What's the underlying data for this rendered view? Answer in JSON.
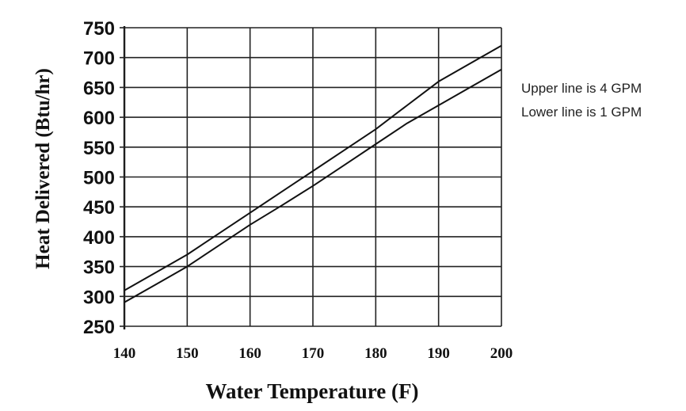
{
  "chart_data": {
    "type": "line",
    "xlabel": "Water Temperature (F)",
    "ylabel": "Heat Delivered (Btu/hr)",
    "xlim": [
      140,
      200
    ],
    "ylim": [
      250,
      750
    ],
    "xticks": [
      "140",
      "150",
      "160",
      "170",
      "180",
      "190",
      "200"
    ],
    "yticks": [
      "250",
      "300",
      "350",
      "400",
      "450",
      "500",
      "550",
      "600",
      "650",
      "700",
      "750"
    ],
    "grid": true,
    "annotations": [
      "Upper line is 4 GPM",
      "Lower line is 1 GPM"
    ],
    "series": [
      {
        "x": [
          140,
          145,
          150,
          155,
          160,
          165,
          170,
          175,
          180,
          185,
          190,
          195,
          200
        ],
        "values": [
          310,
          340,
          370,
          405,
          440,
          475,
          510,
          545,
          580,
          620,
          660,
          690,
          720
        ]
      },
      {
        "x": [
          140,
          145,
          150,
          155,
          160,
          165,
          170,
          175,
          180,
          185,
          190,
          195,
          200
        ],
        "values": [
          290,
          320,
          350,
          385,
          420,
          452,
          485,
          520,
          555,
          590,
          620,
          650,
          680
        ]
      }
    ]
  }
}
